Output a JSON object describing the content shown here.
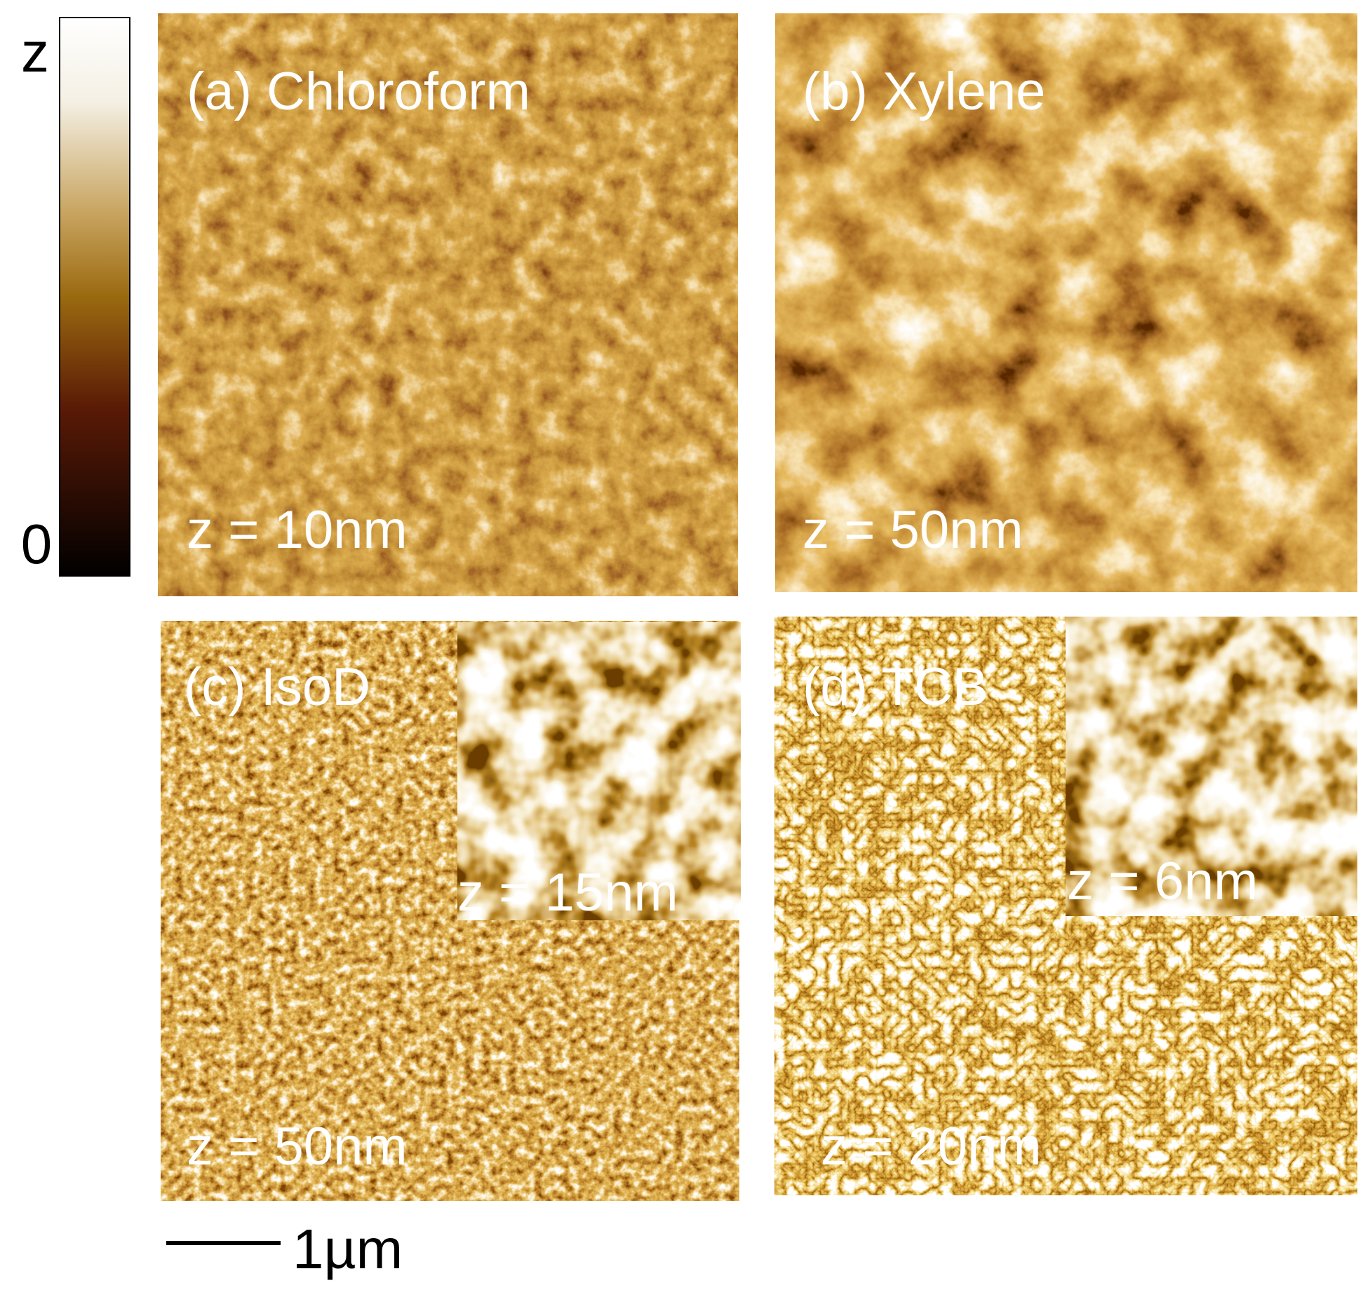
{
  "colorbar": {
    "top_label": "z",
    "bottom_label": "0"
  },
  "panels": [
    {
      "label": "(a) Chloroform",
      "z_label": "z = 10nm"
    },
    {
      "label": "(b) Xylene",
      "z_label": "z = 50nm"
    },
    {
      "label": "(c) IsoD",
      "z_label": "z = 50nm",
      "inset_z_label": "z = 15nm"
    },
    {
      "label": "(d) TCB",
      "z_label": "z = 20nm",
      "inset_z_label": "z = 6nm"
    }
  ],
  "scale_bar": {
    "label": "1µm"
  }
}
